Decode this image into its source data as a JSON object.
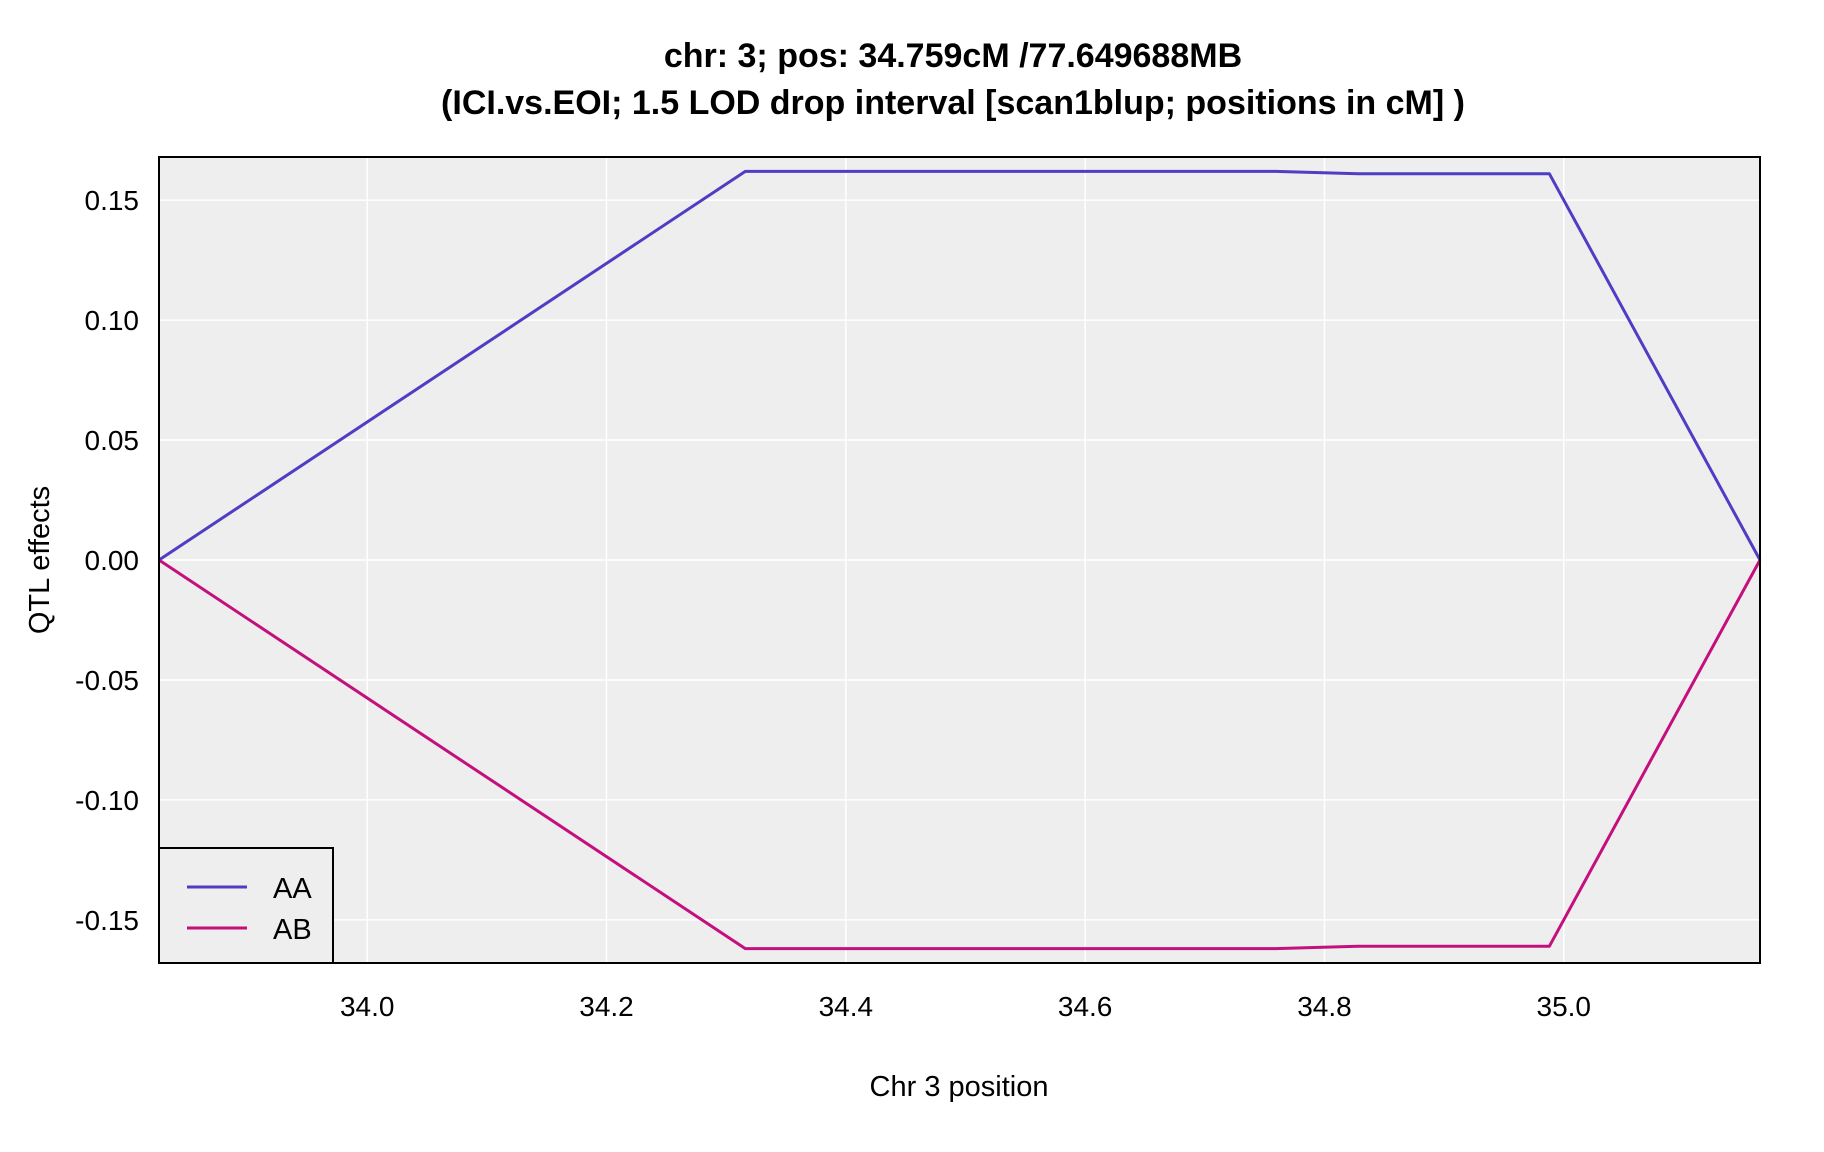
{
  "chart_data": {
    "type": "line",
    "title": "chr: 3; pos: 34.759cM /77.649688MB",
    "subtitle": "(ICI.vs.EOI; 1.5 LOD drop interval [scan1blup; positions in cM] )",
    "xlabel": "Chr 3 position",
    "ylabel": "QTL effects",
    "xlim": [
      33.826,
      35.164
    ],
    "ylim": [
      -0.168,
      0.168
    ],
    "x_ticks": [
      34.0,
      34.2,
      34.4,
      34.6,
      34.8,
      35.0
    ],
    "x_tick_labels": [
      "34.0",
      "34.2",
      "34.4",
      "34.6",
      "34.8",
      "35.0"
    ],
    "y_ticks": [
      0.15,
      0.1,
      0.05,
      0.0,
      -0.05,
      -0.1,
      -0.15
    ],
    "y_tick_labels": [
      "0.15",
      "0.10",
      "0.05",
      "0.00",
      "-0.05",
      "-0.10",
      "-0.15"
    ],
    "grid": true,
    "legend_position": "bottom-left",
    "background_color": "#eeeeee",
    "grid_color": "#ffffff",
    "series": [
      {
        "name": "AA",
        "color": "#4f3dc4",
        "x": [
          33.826,
          34.316,
          34.759,
          34.828,
          34.835,
          34.988,
          35.164
        ],
        "y": [
          0.0,
          0.162,
          0.162,
          0.161,
          0.161,
          0.161,
          0.0
        ]
      },
      {
        "name": "AB",
        "color": "#c4107f",
        "x": [
          33.826,
          34.316,
          34.759,
          34.828,
          34.835,
          34.988,
          35.164
        ],
        "y": [
          0.0,
          -0.162,
          -0.162,
          -0.161,
          -0.161,
          -0.161,
          0.0
        ]
      }
    ]
  }
}
